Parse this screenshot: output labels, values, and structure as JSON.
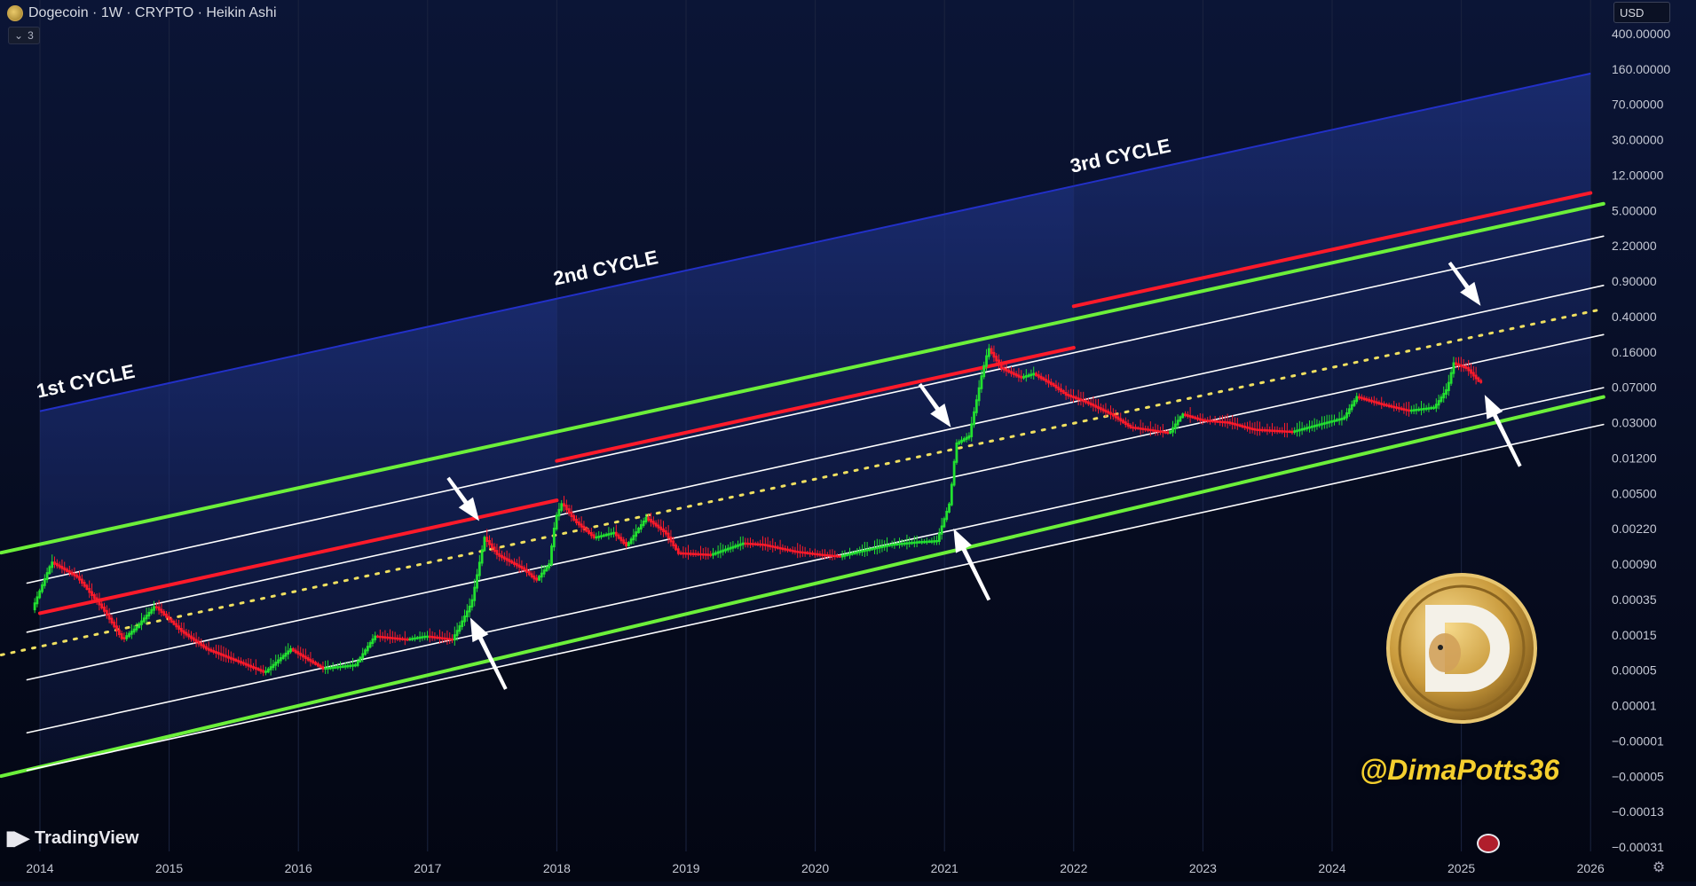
{
  "header": {
    "title": "Dogecoin · 1W · CRYPTO · Heikin Ashi",
    "indicator_badge": "3",
    "currency": "USD"
  },
  "branding": {
    "platform": "TradingView",
    "handle": "@DimaPotts36"
  },
  "colors": {
    "background": "#050a1c",
    "up_candle": "#22e030",
    "down_candle": "#ff1a2a",
    "green_band": "#6cf03a",
    "red_line": "#ff1a2a",
    "white_line": "#ffffff",
    "median_dotted": "#f0e060",
    "cycle_zone": "#1a2a66"
  },
  "chart_data": {
    "type": "line",
    "symbol": "Dogecoin",
    "interval": "1W",
    "style": "Heikin Ashi",
    "y_scale": "log",
    "x_ticks": [
      "2014",
      "2015",
      "2016",
      "2017",
      "2018",
      "2019",
      "2020",
      "2021",
      "2022",
      "2023",
      "2024",
      "2025",
      "2026"
    ],
    "y_ticks": [
      "400.00000",
      "160.00000",
      "70.00000",
      "30.00000",
      "12.00000",
      "5.00000",
      "2.20000",
      "0.90000",
      "0.40000",
      "0.16000",
      "0.07000",
      "0.03000",
      "0.01200",
      "0.00500",
      "0.00220",
      "0.00090",
      "0.00035",
      "0.00015",
      "0.00005",
      "0.00001",
      "−0.00001",
      "−0.00005",
      "−0.00013",
      "−0.00031"
    ],
    "cycle_labels": [
      "1st CYCLE",
      "2nd CYCLE",
      "3rd CYCLE"
    ],
    "cycles": [
      {
        "label": "1st CYCLE",
        "start": 2014.0,
        "end": 2018.0
      },
      {
        "label": "2nd CYCLE",
        "start": 2018.0,
        "end": 2022.0
      },
      {
        "label": "3rd CYCLE",
        "start": 2022.0,
        "end": 2026.0
      }
    ],
    "series": [
      {
        "role": "green-upper-band",
        "points": [
          [
            2013.7,
            0.00233
          ],
          [
            2026.1,
            30.4
          ]
        ]
      },
      {
        "role": "green-lower-band",
        "points": [
          [
            2013.7,
            5.4e-06
          ],
          [
            2026.1,
            0.16
          ]
        ]
      },
      {
        "role": "white-line-1",
        "points": [
          [
            2013.9,
            0.00102
          ],
          [
            2026.1,
            12.6
          ]
        ]
      },
      {
        "role": "white-line-2",
        "points": [
          [
            2013.9,
            0.000269
          ],
          [
            2026.1,
            3.31
          ]
        ]
      },
      {
        "role": "white-line-3",
        "points": [
          [
            2013.9,
            7.38e-05
          ],
          [
            2026.1,
            0.87
          ]
        ]
      },
      {
        "role": "white-line-4",
        "points": [
          [
            2013.9,
            1.75e-05
          ],
          [
            2026.1,
            0.206
          ]
        ]
      },
      {
        "role": "white-line-5",
        "points": [
          [
            2013.9,
            6.3e-06
          ],
          [
            2026.1,
            0.0758
          ]
        ]
      },
      {
        "role": "median-dotted",
        "points": [
          [
            2013.7,
            0.000145
          ],
          [
            2026.1,
            1.75
          ]
        ]
      },
      {
        "role": "red-cycle-top-1",
        "points": [
          [
            2014.0,
            0.00045
          ],
          [
            2018.0,
            0.00966
          ]
        ]
      },
      {
        "role": "red-cycle-top-2",
        "points": [
          [
            2018.0,
            0.0282
          ],
          [
            2022.0,
            0.61
          ]
        ]
      },
      {
        "role": "red-cycle-top-3",
        "points": [
          [
            2022.0,
            1.88
          ],
          [
            2026.0,
            40.8
          ]
        ]
      },
      {
        "role": "price",
        "points": [
          [
            2013.95,
            0.0005
          ],
          [
            2014.1,
            0.0018
          ],
          [
            2014.3,
            0.0012
          ],
          [
            2014.5,
            0.0005
          ],
          [
            2014.65,
            0.00022
          ],
          [
            2014.75,
            0.0003
          ],
          [
            2014.9,
            0.00055
          ],
          [
            2015.1,
            0.00028
          ],
          [
            2015.3,
            0.00017
          ],
          [
            2015.55,
            0.00012
          ],
          [
            2015.75,
            9e-05
          ],
          [
            2015.95,
            0.00017
          ],
          [
            2016.2,
            0.0001
          ],
          [
            2016.45,
            0.00011
          ],
          [
            2016.6,
            0.00024
          ],
          [
            2016.85,
            0.00022
          ],
          [
            2017.0,
            0.00024
          ],
          [
            2017.2,
            0.00022
          ],
          [
            2017.25,
            0.0003
          ],
          [
            2017.35,
            0.0006
          ],
          [
            2017.45,
            0.0035
          ],
          [
            2017.55,
            0.0022
          ],
          [
            2017.75,
            0.0015
          ],
          [
            2017.85,
            0.0011
          ],
          [
            2017.95,
            0.0017
          ],
          [
            2018.0,
            0.006
          ],
          [
            2018.05,
            0.009
          ],
          [
            2018.15,
            0.0055
          ],
          [
            2018.3,
            0.0035
          ],
          [
            2018.45,
            0.004
          ],
          [
            2018.55,
            0.0028
          ],
          [
            2018.7,
            0.006
          ],
          [
            2018.85,
            0.004
          ],
          [
            2018.95,
            0.0023
          ],
          [
            2019.2,
            0.0022
          ],
          [
            2019.45,
            0.003
          ],
          [
            2019.6,
            0.0029
          ],
          [
            2019.85,
            0.0024
          ],
          [
            2020.05,
            0.0022
          ],
          [
            2020.2,
            0.0021
          ],
          [
            2020.35,
            0.0024
          ],
          [
            2020.6,
            0.0029
          ],
          [
            2020.8,
            0.0031
          ],
          [
            2020.95,
            0.0032
          ],
          [
            2021.05,
            0.009
          ],
          [
            2021.1,
            0.045
          ],
          [
            2021.2,
            0.055
          ],
          [
            2021.3,
            0.3
          ],
          [
            2021.35,
            0.6
          ],
          [
            2021.45,
            0.35
          ],
          [
            2021.6,
            0.27
          ],
          [
            2021.7,
            0.3
          ],
          [
            2021.85,
            0.22
          ],
          [
            2021.95,
            0.17
          ],
          [
            2022.1,
            0.14
          ],
          [
            2022.3,
            0.1
          ],
          [
            2022.45,
            0.07
          ],
          [
            2022.6,
            0.065
          ],
          [
            2022.75,
            0.06
          ],
          [
            2022.85,
            0.1
          ],
          [
            2023.0,
            0.085
          ],
          [
            2023.2,
            0.08
          ],
          [
            2023.4,
            0.066
          ],
          [
            2023.55,
            0.064
          ],
          [
            2023.7,
            0.062
          ],
          [
            2023.9,
            0.075
          ],
          [
            2024.1,
            0.09
          ],
          [
            2024.2,
            0.16
          ],
          [
            2024.4,
            0.13
          ],
          [
            2024.6,
            0.11
          ],
          [
            2024.8,
            0.12
          ],
          [
            2024.9,
            0.2
          ],
          [
            2024.95,
            0.4
          ],
          [
            2025.05,
            0.35
          ],
          [
            2025.15,
            0.24
          ]
        ]
      }
    ],
    "annotations": [
      {
        "type": "arrow",
        "target": [
          2017.4,
          0.0055
        ],
        "direction": "down-right"
      },
      {
        "type": "arrow",
        "target": [
          2017.33,
          0.0004
        ],
        "direction": "up-left"
      },
      {
        "type": "arrow",
        "target": [
          2021.05,
          0.07
        ],
        "direction": "down-right"
      },
      {
        "type": "arrow",
        "target": [
          2021.07,
          0.0045
        ],
        "direction": "up-left"
      },
      {
        "type": "arrow",
        "target": [
          2025.15,
          1.9
        ],
        "direction": "down-right"
      },
      {
        "type": "arrow",
        "target": [
          2025.18,
          0.17
        ],
        "direction": "up-left"
      }
    ],
    "grid": true,
    "legend": "none"
  }
}
